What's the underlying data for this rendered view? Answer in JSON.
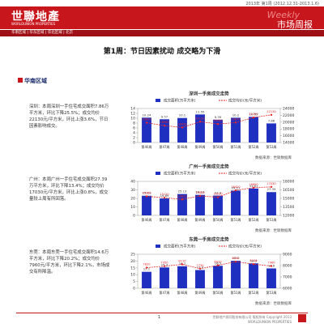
{
  "header": {
    "issue": "2013年 第1周 (2012.12.31-2013.1.6)",
    "logo": "世聯地產",
    "logo_sub": "WORLDUNION PROPERTIES",
    "weekly": "Weekly",
    "report_name": "市场周报",
    "nav": "华南区域 | 华东区域 | 华北区域 | 北京"
  },
  "title": "第1周：节日因素扰动 成交略为下滑",
  "region": "华南区域",
  "blocks": [
    {
      "text": "深圳：本周深圳一手住宅成交面积7.86万平方米，环比下降25.5%；成交均价22130元/平方米，环比上涨3.6%，节日因素影响成交。",
      "source": "数据来源：世联数据库",
      "chart": {
        "type": "bar-line",
        "title": "深圳一手房成交走势",
        "categories": [
          "第46周",
          "第47周",
          "第48周",
          "第49周",
          "第50周",
          "第51周",
          "第52周",
          "第53周"
        ],
        "series": [
          {
            "name": "成交面积(万平方米)",
            "color": "#1f2fbf",
            "values": [
              10.24,
              9.57,
              10.1,
              11.55,
              9.39,
              10.2,
              10.55,
              7.86
            ]
          },
          {
            "name": "成交均价(元/平方米)",
            "color": "#e8262a",
            "axis": "y2",
            "values": [
              19820,
              18960,
              18430,
              20130,
              19440,
              19870,
              21350,
              22130
            ]
          }
        ],
        "ylim": [
          0,
          14
        ],
        "yticks": [
          0,
          2,
          4,
          6,
          8,
          10,
          12,
          14
        ],
        "y2lim": [
          14000,
          24000
        ],
        "y2ticks": [
          14000,
          16000,
          18000,
          20000,
          22000,
          24000
        ]
      }
    },
    {
      "text": "广州：本周广州一手住宅成交面积27.39万平方米，环比下降13.4%；成交均价17030元/平方米，环比上涨0.8%，成交量较上周有所回落。",
      "source": "数据来源：世联数据库",
      "chart": {
        "type": "bar-line",
        "title": "广州一手房成交走势",
        "categories": [
          "第46周",
          "第47周",
          "第48周",
          "第49周",
          "第50周",
          "第51周",
          "第52周",
          "第53周"
        ],
        "series": [
          {
            "name": "成交面积(万平方米)",
            "color": "#1f2fbf",
            "values": [
              23.11,
              19.89,
              25.13,
              24.13,
              23.3,
              29.21,
              31.61,
              27.39
            ]
          },
          {
            "name": "成交均价(元/平方米)",
            "color": "#e8262a",
            "axis": "y2",
            "values": [
              15360,
              15120,
              14820,
              15450,
              15210,
              16420,
              16890,
              17030
            ]
          }
        ],
        "ylim": [
          0,
          40
        ],
        "yticks": [
          0,
          10,
          20,
          30,
          40
        ],
        "y2lim": [
          12000,
          18000
        ],
        "y2ticks": [
          12000,
          13500,
          15000,
          16500,
          18000
        ]
      }
    },
    {
      "text": "东莞：本周东莞一手住宅成交面积14.6万平方米，环比下降20.2%；成交均价7960元/平方米，环比下降2.1%，市场成交有所降温。",
      "source": "数据来源：世联数据库",
      "chart": {
        "type": "bar-line",
        "title": "东莞一手房成交走势",
        "categories": [
          "第46周",
          "第47周",
          "第48周",
          "第49周",
          "第50周",
          "第51周",
          "第52周",
          "第53周"
        ],
        "series": [
          {
            "name": "成交面积(万平方米)",
            "color": "#1f2fbf",
            "values": [
              12.1,
              15.3,
              16.2,
              13.4,
              16.5,
              20.2,
              18.3,
              14.6
            ]
          },
          {
            "name": "成交均价(元/平方米)",
            "color": "#e8262a",
            "axis": "y2",
            "values": [
              7820,
              7950,
              8110,
              7730,
              8020,
              8350,
              8130,
              7960
            ]
          }
        ],
        "ylim": [
          0,
          25
        ],
        "yticks": [
          0,
          5,
          10,
          15,
          20,
          25
        ],
        "y2lim": [
          6000,
          9000
        ],
        "y2ticks": [
          6000,
          7000,
          8000,
          9000
        ]
      }
    }
  ],
  "footer": {
    "page": "1",
    "text": "世联地产顾问股份有限公司 版权所有 Copyright 2013 WORLDUNION PROPERTIES"
  }
}
